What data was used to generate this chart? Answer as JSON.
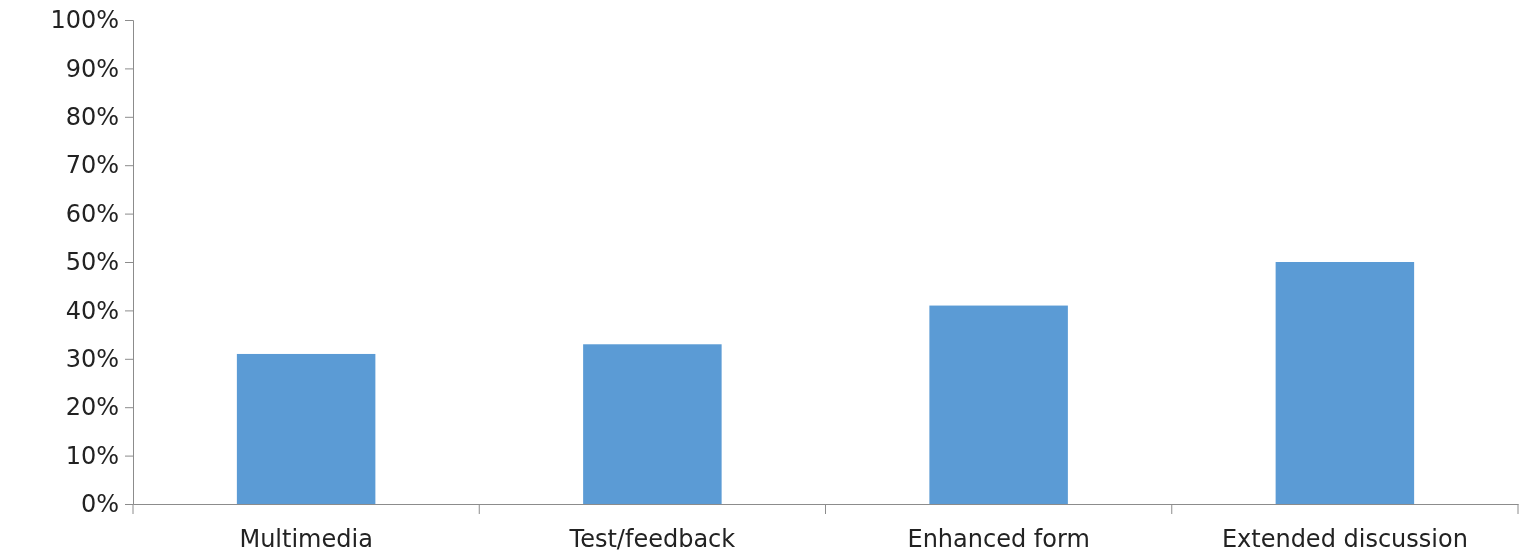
{
  "chart_data": {
    "type": "bar",
    "categories": [
      "Multimedia",
      "Test/feedback",
      "Enhanced form",
      "Extended discussion"
    ],
    "values": [
      31,
      33,
      41,
      50
    ],
    "color": "#5b9bd5",
    "ylim": [
      0,
      100
    ],
    "yticks": [
      {
        "value": 0,
        "label": "0%"
      },
      {
        "value": 10,
        "label": "10%"
      },
      {
        "value": 20,
        "label": "20%"
      },
      {
        "value": 30,
        "label": "30%"
      },
      {
        "value": 40,
        "label": "40%"
      },
      {
        "value": 50,
        "label": "50%"
      },
      {
        "value": 60,
        "label": "60%"
      },
      {
        "value": 70,
        "label": "70%"
      },
      {
        "value": 80,
        "label": "80%"
      },
      {
        "value": 90,
        "label": "90%"
      },
      {
        "value": 100,
        "label": "100%"
      }
    ],
    "grid": false
  }
}
